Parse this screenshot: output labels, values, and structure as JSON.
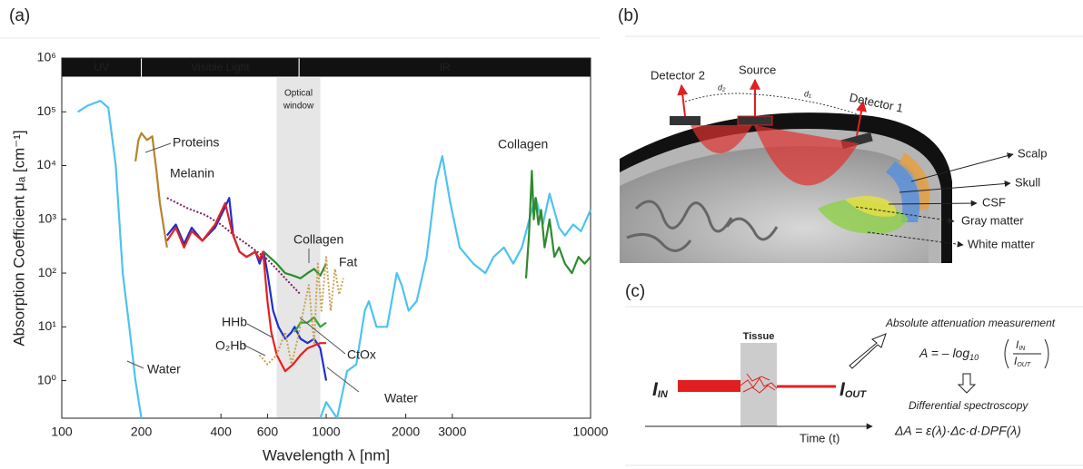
{
  "panel_labels": [
    "(a)",
    "(b)",
    "(c)"
  ],
  "chart_data": {
    "type": "line",
    "xlabel": "Wavelength λ [nm]",
    "ylabel": "Absorption Coefficient μₐ [cm⁻¹]",
    "xscale": "log",
    "yscale": "log",
    "xlim": [
      100,
      10000
    ],
    "ylim": [
      0.2,
      1000000
    ],
    "xticks": [
      100,
      200,
      400,
      600,
      1000,
      2000,
      3000,
      10000
    ],
    "yticks": [
      {
        "value": 1,
        "label": "10⁰"
      },
      {
        "value": 10,
        "label": "10¹"
      },
      {
        "value": 100,
        "label": "10²"
      },
      {
        "value": 1000,
        "label": "10³"
      },
      {
        "value": 10000,
        "label": "10⁴"
      },
      {
        "value": 100000,
        "label": "10⁵"
      },
      {
        "value": 1000000,
        "label": "10⁶"
      }
    ],
    "bands": [
      {
        "label": "UV",
        "range": [
          100,
          200
        ]
      },
      {
        "label": "Visible Light",
        "range": [
          200,
          790
        ]
      },
      {
        "label": "IR",
        "range": [
          790,
          10000
        ]
      }
    ],
    "optical_window": {
      "label": [
        "Optical",
        "window"
      ],
      "range": [
        650,
        950
      ]
    },
    "series": [
      {
        "name": "Water",
        "color": "#4dc3f0",
        "x": [
          115,
          125,
          140,
          150,
          160,
          170,
          180,
          190,
          200,
          null,
          950,
          1000,
          1100,
          1200,
          1300,
          1400,
          1450,
          1550,
          1700,
          1850,
          1930,
          2050,
          2200,
          2400,
          2600,
          2750,
          2950,
          3200,
          3600,
          4000,
          4300,
          4700,
          5100,
          5500,
          6000,
          6200,
          6600,
          7000,
          7600,
          8000,
          8600,
          9200,
          10000
        ],
        "values": [
          100000,
          130000,
          160000,
          120000,
          10000,
          100,
          10,
          1,
          0.2,
          null,
          0.2,
          0.4,
          0.2,
          1.5,
          2,
          20,
          30,
          10,
          10,
          100,
          60,
          20,
          30,
          200,
          5000,
          15000,
          2000,
          300,
          150,
          100,
          200,
          300,
          150,
          300,
          1500,
          2500,
          800,
          3000,
          700,
          500,
          800,
          600,
          1500
        ]
      },
      {
        "name": "Proteins",
        "color": "#b8822d",
        "dash": false,
        "x": [
          190,
          195,
          200,
          210,
          220,
          228,
          235,
          242,
          250
        ],
        "values": [
          12000,
          30000,
          40000,
          30000,
          35000,
          8000,
          2000,
          800,
          300
        ]
      },
      {
        "name": "Melanin",
        "color": "#7b1f5f",
        "dash": true,
        "x": [
          250,
          300,
          350,
          400,
          450,
          500,
          600,
          700,
          800
        ],
        "values": [
          2500,
          1600,
          1200,
          800,
          500,
          350,
          180,
          80,
          40
        ]
      },
      {
        "name": "HHb",
        "color": "#1d2fd1",
        "x": [
          250,
          270,
          290,
          310,
          340,
          380,
          410,
          430,
          445,
          470,
          500,
          540,
          560,
          580,
          600,
          630,
          660,
          700,
          740,
          760,
          800,
          850,
          900,
          950,
          1000
        ],
        "values": [
          500,
          800,
          350,
          700,
          400,
          700,
          1500,
          2500,
          500,
          250,
          200,
          250,
          150,
          250,
          100,
          20,
          10,
          6,
          8,
          10,
          6,
          5,
          6,
          4,
          1
        ]
      },
      {
        "name": "O₂Hb",
        "color": "#e8201d",
        "x": [
          250,
          270,
          290,
          310,
          340,
          380,
          415,
          440,
          470,
          500,
          540,
          560,
          577,
          600,
          620,
          650,
          700,
          750,
          800,
          850,
          900,
          950,
          1000
        ],
        "values": [
          400,
          700,
          300,
          600,
          400,
          800,
          2000,
          600,
          250,
          200,
          250,
          180,
          250,
          30,
          8,
          3,
          1.5,
          2,
          3,
          4,
          4.5,
          5,
          5
        ]
      },
      {
        "name": "Collagen",
        "color": "#2e8b2e",
        "x": [
          580,
          650,
          700,
          750,
          800,
          850,
          900,
          950,
          1000,
          null,
          5700,
          5850,
          6000,
          6100,
          6200,
          6350,
          6500,
          6700,
          7000,
          7300,
          7600,
          8000,
          8500,
          9000,
          9500,
          10000
        ],
        "values": [
          250,
          150,
          100,
          90,
          80,
          100,
          120,
          90,
          150,
          null,
          80,
          500,
          8000,
          1000,
          2500,
          800,
          1500,
          300,
          1000,
          200,
          300,
          150,
          100,
          200,
          150,
          200
        ]
      },
      {
        "name": "CtOx",
        "color": "#36a336",
        "x": [
          760,
          800,
          850,
          900,
          950,
          1000
        ],
        "values": [
          8,
          12,
          12,
          15,
          10,
          12
        ]
      },
      {
        "name": "Fat",
        "color": "#c8a050",
        "dash": true,
        "x": [
          560,
          600,
          650,
          700,
          740,
          780,
          820,
          860,
          900,
          930,
          960,
          1000,
          1040,
          1080,
          1120,
          1160
        ],
        "values": [
          3,
          2,
          3,
          8,
          2,
          6,
          20,
          60,
          5,
          150,
          20,
          200,
          20,
          120,
          40,
          80
        ]
      }
    ]
  },
  "diagram_b": {
    "detector2": "Detector 2",
    "source": "Source",
    "detector1": "Detector 1",
    "d2": "d₂",
    "d1": "d₁",
    "layers": [
      "Scalp",
      "Skull",
      "CSF",
      "Gray matter",
      "White matter"
    ]
  },
  "diagram_c": {
    "tissue": "Tissue",
    "i_in": {
      "text": "I",
      "sub": "IN"
    },
    "i_out": {
      "text": "I",
      "sub": "OUT"
    },
    "time": "Time (t)",
    "absolute": "Absolute attenuation measurement",
    "formula_lhs": "A = – log",
    "formula_base": "10",
    "differential": "Differential spectroscopy",
    "delta_formula": "ΔA = ε(λ)·Δc·d·DPF(λ)"
  }
}
